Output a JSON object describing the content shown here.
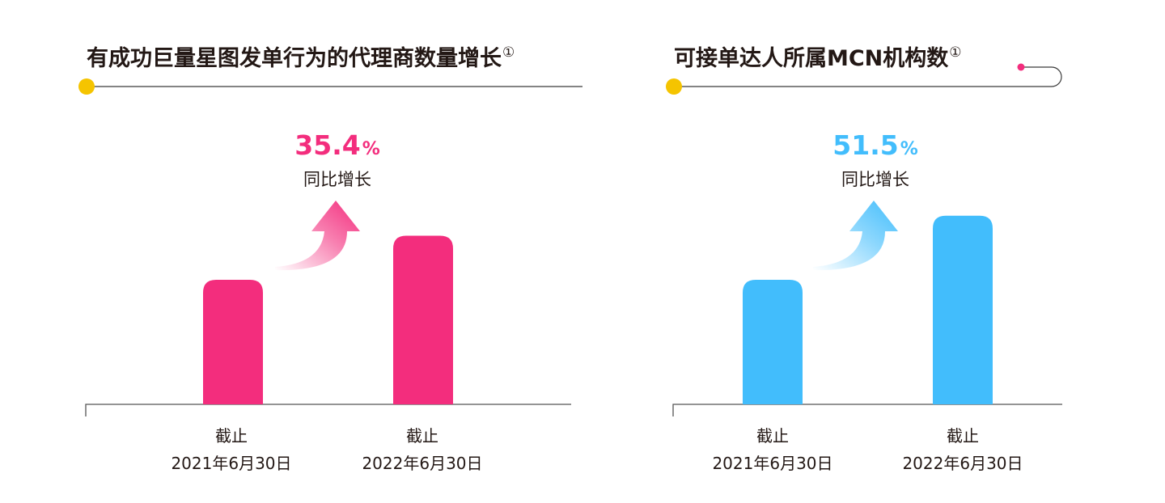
{
  "chart_data": [
    {
      "type": "bar",
      "title": "有成功巨量星图发单行为的代理商数量增长",
      "title_note": "①",
      "categories": [
        [
          "截止",
          "2021年6月30日"
        ],
        [
          "截止",
          "2022年6月30日"
        ]
      ],
      "values": [
        1.0,
        1.354
      ],
      "growth": {
        "value": "35.4",
        "unit": "%",
        "label": "同比增长"
      },
      "color": "#f32d7d",
      "accent_dot": "#f5c400"
    },
    {
      "type": "bar",
      "title": "可接单达人所属MCN机构数",
      "title_note": "①",
      "categories": [
        [
          "截止",
          "2021年6月30日"
        ],
        [
          "截止",
          "2022年6月30日"
        ]
      ],
      "values": [
        1.0,
        1.515
      ],
      "growth": {
        "value": "51.5",
        "unit": "%",
        "label": "同比增长"
      },
      "color": "#42bdfc",
      "accent_dot": "#f5c400"
    }
  ]
}
